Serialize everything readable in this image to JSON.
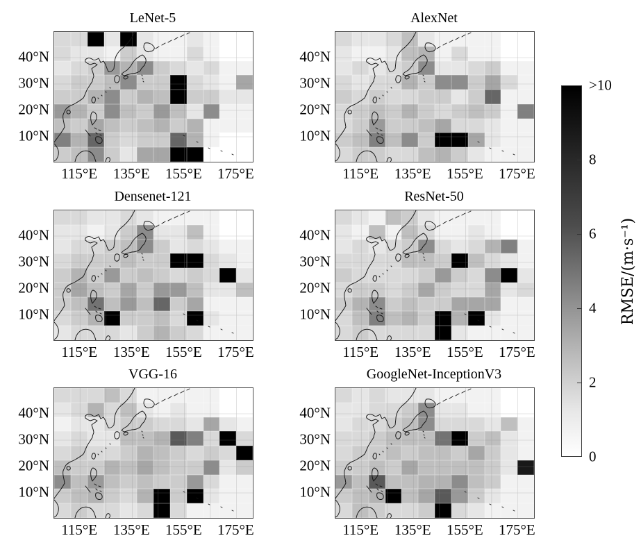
{
  "chart_data": {
    "type": "heatmap",
    "layout": "3 rows x 2 columns of geographic heatmap panels with one shared vertical colorbar on the right",
    "title": "",
    "x_tick_labels": [
      "115°E",
      "135°E",
      "155°E",
      "175°E"
    ],
    "y_tick_labels": [
      "40°N",
      "30°N",
      "20°N",
      "10°N"
    ],
    "value_range": [
      0,
      10
    ],
    "value_unit": "m·s⁻¹",
    "colorbar_label": "RMSE/(m·s⁻¹)",
    "colorbar_ticks_bottom_to_top": [
      "0",
      "2",
      "4",
      "6",
      "8",
      ">10"
    ],
    "colormap": "Greys: 0 = white, >=10 = black",
    "grid_shape_rows_cols": [
      9,
      12
    ],
    "geo_extent": {
      "lon": "≈105°E–185°E",
      "lat": "≈0°N–50°N"
    },
    "legend_position": "right",
    "grid_lines": "faint 10° graticule",
    "panels": [
      {
        "title": "LeNet-5",
        "values": [
          [
            1.5,
            1.5,
            10,
            1,
            10,
            1,
            0.5,
            0.5,
            1,
            0.5,
            0,
            0
          ],
          [
            1.5,
            1,
            1,
            0.5,
            2,
            1,
            0.5,
            0.5,
            1.5,
            0.5,
            0,
            0
          ],
          [
            1,
            1.5,
            2,
            4,
            3,
            4.5,
            2,
            1.5,
            1,
            1.5,
            0.5,
            0.5
          ],
          [
            1.5,
            2,
            2,
            2.5,
            4.5,
            2,
            2,
            10,
            1.5,
            1,
            0.5,
            3.5
          ],
          [
            2,
            2,
            3,
            4.5,
            2,
            3,
            2.5,
            10,
            2,
            2,
            1,
            1
          ],
          [
            4,
            3,
            2,
            4.5,
            2.5,
            2,
            4,
            2.5,
            1,
            4.5,
            0.5,
            0.5
          ],
          [
            2.5,
            2,
            3.5,
            2.5,
            2,
            2.5,
            3,
            2,
            3,
            0.5,
            0.5,
            0.5
          ],
          [
            5,
            3,
            6,
            2,
            1.5,
            2,
            2,
            6,
            3,
            0.5,
            0,
            0
          ],
          [
            2,
            2.5,
            4.5,
            2,
            1,
            3.5,
            3.5,
            10,
            10,
            0,
            0,
            0
          ]
        ]
      },
      {
        "title": "AlexNet",
        "values": [
          [
            1.5,
            1,
            1,
            1.5,
            2.5,
            1,
            0.5,
            0.5,
            0.5,
            0.5,
            0,
            0
          ],
          [
            1,
            0.5,
            0.5,
            1,
            2.5,
            3,
            0.5,
            1.5,
            0.5,
            0.5,
            0,
            0
          ],
          [
            1,
            1.5,
            1,
            1.5,
            2,
            4.5,
            1,
            1,
            1.5,
            2,
            0.5,
            0.5
          ],
          [
            1.5,
            1,
            1.5,
            1.5,
            3,
            2,
            4.5,
            4.5,
            2,
            3.5,
            1.5,
            0.5
          ],
          [
            2,
            1.5,
            2,
            1.5,
            1.5,
            2,
            2,
            1,
            2,
            6,
            0.5,
            0.5
          ],
          [
            1.5,
            2,
            2.5,
            2,
            3,
            2,
            1.5,
            2,
            2.5,
            2,
            0.5,
            5
          ],
          [
            1.5,
            2,
            4,
            2,
            2,
            2.5,
            3.5,
            1.5,
            1.5,
            1,
            0.5,
            0.5
          ],
          [
            2,
            2.5,
            5,
            2.5,
            4.5,
            2,
            10,
            10,
            3.5,
            1,
            0.5,
            0.5
          ],
          [
            1.5,
            2,
            2,
            1.5,
            1.5,
            2.5,
            3,
            2,
            1,
            0.5,
            0.5,
            0.5
          ]
        ]
      },
      {
        "title": "Densenet-121",
        "values": [
          [
            1.5,
            1.5,
            1,
            1,
            1.5,
            1,
            0.5,
            0.5,
            0.5,
            0.5,
            0,
            0
          ],
          [
            1,
            1,
            0.5,
            1,
            2,
            4.5,
            1,
            1,
            2.5,
            0.5,
            0,
            0
          ],
          [
            1,
            1.5,
            1.5,
            2,
            2.5,
            4.5,
            2,
            1,
            1.5,
            1,
            0.5,
            0.5
          ],
          [
            1.5,
            2,
            2,
            2,
            2.5,
            2,
            2,
            10,
            10,
            1.5,
            1,
            0.5
          ],
          [
            2,
            3,
            2,
            4,
            2,
            2.5,
            2,
            1.5,
            2,
            1.5,
            10,
            1
          ],
          [
            2,
            3.5,
            2.5,
            2,
            3.5,
            2,
            4,
            4,
            2.5,
            1,
            1,
            2.5
          ],
          [
            2,
            2.5,
            5.5,
            2.5,
            4,
            2.5,
            6,
            2,
            3.5,
            0.5,
            0.5,
            0.5
          ],
          [
            1.5,
            2,
            3,
            10,
            2,
            2,
            2.5,
            1.5,
            10,
            1,
            0.5,
            0.5
          ],
          [
            1,
            1.5,
            1.5,
            1.5,
            1,
            2,
            3,
            2,
            1.5,
            0.5,
            0.5,
            0.5
          ]
        ]
      },
      {
        "title": "ResNet-50",
        "values": [
          [
            1.5,
            1,
            0.5,
            2.5,
            2,
            1,
            0.5,
            0.5,
            0.5,
            0.5,
            0,
            0
          ],
          [
            1,
            0.5,
            2.5,
            0.5,
            2.5,
            1.5,
            0.5,
            0.5,
            1,
            0.5,
            0,
            0
          ],
          [
            1,
            1.5,
            1,
            1.5,
            2,
            4.5,
            1.5,
            1,
            1.5,
            3,
            5,
            0.5
          ],
          [
            1.5,
            1.5,
            1.5,
            1.5,
            2.5,
            2.5,
            2,
            10,
            2.5,
            1.5,
            1,
            0.5
          ],
          [
            2,
            1.5,
            1.5,
            1.5,
            1.5,
            2,
            4,
            2,
            1.5,
            4.5,
            10,
            1
          ],
          [
            1.5,
            2,
            2,
            1.5,
            2,
            3.5,
            2,
            1.5,
            1.5,
            3.5,
            1,
            1.5
          ],
          [
            2,
            3,
            4.5,
            2,
            2.5,
            2,
            2,
            3.5,
            3.5,
            3.5,
            0.5,
            0.5
          ],
          [
            1.5,
            2.5,
            5,
            2.5,
            3,
            2,
            10,
            3,
            10,
            1,
            0.5,
            0.5
          ],
          [
            1.5,
            2,
            1.5,
            1.5,
            1.5,
            1.5,
            10,
            1,
            0.5,
            0.5,
            0.5,
            0.5
          ]
        ]
      },
      {
        "title": "VGG-16",
        "values": [
          [
            1.5,
            1.5,
            1.5,
            2.5,
            1.5,
            0.5,
            0.5,
            0.5,
            0.5,
            0.5,
            0,
            0
          ],
          [
            1,
            1.5,
            3,
            1.5,
            2.5,
            1,
            0.5,
            1,
            0.5,
            0.5,
            0,
            0
          ],
          [
            0.5,
            1,
            1,
            1.5,
            2,
            2,
            1.5,
            1.5,
            1,
            3.5,
            1,
            0.5
          ],
          [
            1,
            1.5,
            1,
            1,
            2.5,
            2.5,
            3,
            6.5,
            5,
            1.5,
            10,
            1.5
          ],
          [
            1.5,
            2,
            1.5,
            1.5,
            2,
            3,
            2.5,
            2,
            1.5,
            2,
            1.5,
            10
          ],
          [
            2.5,
            2,
            2,
            3,
            2.5,
            3.5,
            2.5,
            2,
            2,
            4.5,
            1,
            2
          ],
          [
            4.5,
            2.5,
            4,
            2.5,
            2,
            2.5,
            2,
            2,
            4,
            1.5,
            0.5,
            0.5
          ],
          [
            2,
            2.5,
            3,
            2,
            1.5,
            3,
            10,
            2,
            10,
            1,
            0.5,
            0.5
          ],
          [
            1.5,
            2,
            1.5,
            1.5,
            1,
            1.5,
            10,
            1.5,
            0.5,
            0.5,
            0.5,
            0.5
          ]
        ]
      },
      {
        "title": "GoogleNet-InceptionV3",
        "values": [
          [
            1.5,
            1,
            1.5,
            1,
            1,
            1,
            0.5,
            0.5,
            0.5,
            0.5,
            0,
            0
          ],
          [
            1,
            1,
            1.5,
            1.5,
            2,
            4.5,
            1,
            1,
            0.5,
            0.5,
            0,
            0
          ],
          [
            1,
            1.5,
            1.5,
            2,
            2.5,
            4.5,
            1.5,
            1.5,
            1.5,
            1,
            2.5,
            0.5
          ],
          [
            1.5,
            1.5,
            2,
            2.5,
            2.5,
            2.5,
            5.5,
            10,
            2,
            2.5,
            1,
            0.5
          ],
          [
            1.5,
            2,
            2,
            2.5,
            2,
            2.5,
            2.5,
            2,
            3.5,
            2,
            1,
            0.5
          ],
          [
            2,
            2,
            2.5,
            2,
            3.5,
            2.5,
            2.5,
            2.5,
            2.5,
            2,
            1,
            9
          ],
          [
            4,
            2.5,
            6.5,
            2.5,
            2.5,
            3,
            3,
            4.5,
            2.5,
            2,
            0.5,
            0.5
          ],
          [
            2,
            2.5,
            3,
            10,
            2.5,
            3.5,
            6.5,
            4,
            2,
            1,
            0.5,
            0.5
          ],
          [
            1.5,
            2.5,
            2,
            1.5,
            1.5,
            2,
            10,
            1.5,
            1,
            0.5,
            0.5,
            0.5
          ]
        ]
      }
    ]
  }
}
